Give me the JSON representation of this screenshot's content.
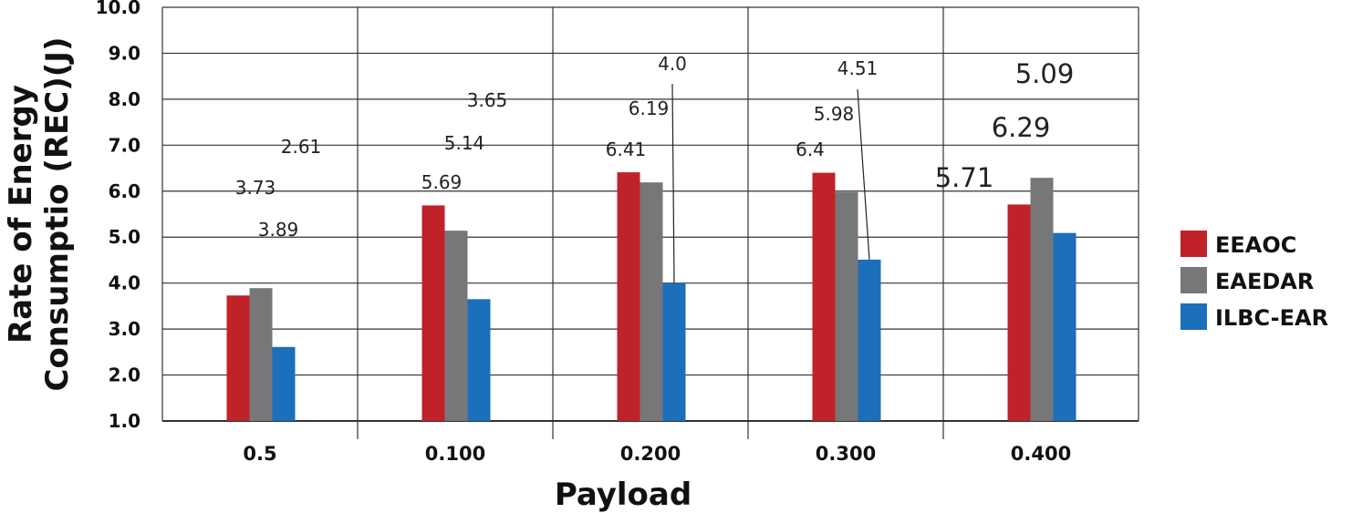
{
  "chart_data": {
    "type": "bar",
    "title": "",
    "xlabel": "Payload",
    "ylabel_line1": "Rate of Energy",
    "ylabel_line2": "Consumptio (REC)(J)",
    "ylim": [
      1.0,
      10.0
    ],
    "yticks": [
      "1.0",
      "2.0",
      "3.0",
      "4.0",
      "5.0",
      "6.0",
      "7.0",
      "8.0",
      "9.0",
      "10.0"
    ],
    "categories": [
      "0.5",
      "0.100",
      "0.200",
      "0.300",
      "0.400"
    ],
    "series": [
      {
        "name": "EEAOC",
        "color": "#c0222a",
        "values": [
          3.73,
          5.69,
          6.41,
          6.4,
          5.71
        ],
        "labels": [
          "3.73",
          "5.69",
          "6.41",
          "6.4",
          "5.71"
        ]
      },
      {
        "name": "EAEDAR",
        "color": "#77777a",
        "values": [
          3.89,
          5.14,
          6.19,
          5.98,
          6.29
        ],
        "labels": [
          "3.89",
          "5.14",
          "6.19",
          "5.98",
          "6.29"
        ]
      },
      {
        "name": "ILBC-EAR",
        "color": "#1b6fbb",
        "values": [
          2.61,
          3.65,
          4.0,
          4.51,
          5.09
        ],
        "labels": [
          "2.61",
          "3.65",
          "4.0",
          "4.51",
          "5.09"
        ]
      }
    ],
    "legend_position": "right",
    "grid": true
  }
}
